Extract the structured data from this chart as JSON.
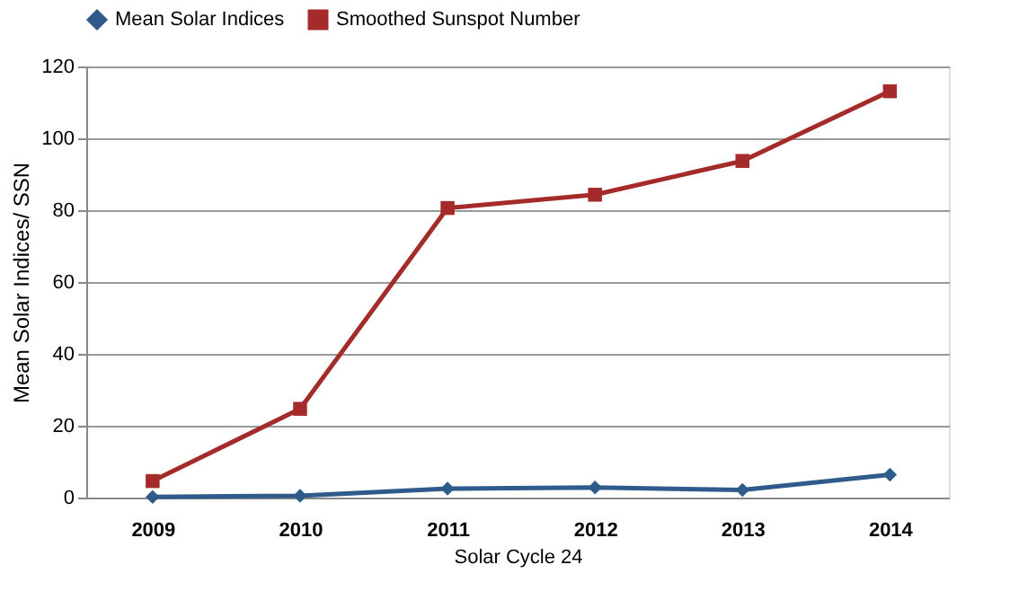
{
  "chart_data": {
    "type": "line",
    "xlabel": "Solar Cycle 24",
    "ylabel": "Mean Solar Indices/ SSN",
    "categories": [
      "2009",
      "2010",
      "2011",
      "2012",
      "2013",
      "2014"
    ],
    "series": [
      {
        "name": "Mean Solar Indices",
        "color": "#2f5b8c",
        "marker": "diamond",
        "values": [
          0.2,
          0.5,
          2.5,
          2.8,
          2.1,
          6.4
        ]
      },
      {
        "name": "Smoothed Sunspot Number",
        "color": "#a52a2a",
        "marker": "square",
        "values": [
          4.6,
          24.7,
          80.6,
          84.3,
          93.7,
          113.1
        ]
      }
    ],
    "ylim": [
      0,
      120
    ],
    "yticks": [
      0,
      20,
      40,
      60,
      80,
      100,
      120
    ],
    "grid": "y",
    "legend": "top",
    "line_style": "solid"
  }
}
